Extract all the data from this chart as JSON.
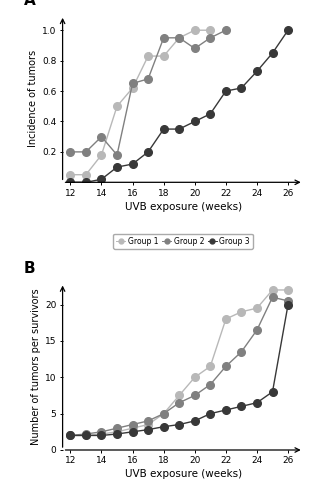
{
  "panel_A": {
    "group1": {
      "x": [
        12,
        13,
        14,
        15,
        16,
        17,
        18,
        19,
        20,
        21
      ],
      "y": [
        0.05,
        0.05,
        0.18,
        0.5,
        0.62,
        0.83,
        0.83,
        0.95,
        1.0,
        1.0
      ],
      "color": "#b8b8b8",
      "label": "Group 1"
    },
    "group2": {
      "x": [
        12,
        13,
        14,
        15,
        16,
        17,
        18,
        19,
        20,
        21,
        22
      ],
      "y": [
        0.2,
        0.2,
        0.3,
        0.18,
        0.65,
        0.68,
        0.95,
        0.95,
        0.88,
        0.95,
        1.0
      ],
      "color": "#808080",
      "label": "Group 2"
    },
    "group3": {
      "x": [
        12,
        13,
        14,
        15,
        16,
        17,
        18,
        19,
        20,
        21,
        22,
        23,
        24,
        25,
        26
      ],
      "y": [
        0.0,
        0.0,
        0.02,
        0.1,
        0.12,
        0.2,
        0.35,
        0.35,
        0.4,
        0.45,
        0.6,
        0.62,
        0.73,
        0.85,
        1.0
      ],
      "color": "#383838",
      "label": "Group 3"
    },
    "ylabel": "Incidence of tumors",
    "xlabel": "UVB exposure (weeks)",
    "ylim": [
      0.0,
      1.1
    ],
    "xlim": [
      11.5,
      27.0
    ],
    "yticks": [
      0.2,
      0.4,
      0.6,
      0.8,
      1.0
    ],
    "xticks": [
      12,
      14,
      16,
      18,
      20,
      22,
      24,
      26
    ],
    "panel_label": "A"
  },
  "panel_B": {
    "group1": {
      "x": [
        12,
        13,
        14,
        15,
        16,
        17,
        18,
        19,
        20,
        21,
        22,
        23,
        24,
        25,
        26
      ],
      "y": [
        2.0,
        2.0,
        2.2,
        2.5,
        3.0,
        3.5,
        5.0,
        7.5,
        10.0,
        11.5,
        18.0,
        19.0,
        19.5,
        22.0,
        22.0
      ],
      "color": "#b8b8b8",
      "label": "Group 1"
    },
    "group2": {
      "x": [
        12,
        13,
        14,
        15,
        16,
        17,
        18,
        19,
        20,
        21,
        22,
        23,
        24,
        25,
        26
      ],
      "y": [
        2.0,
        2.2,
        2.5,
        3.0,
        3.5,
        4.0,
        5.0,
        6.5,
        7.5,
        9.0,
        11.5,
        13.5,
        16.5,
        21.0,
        20.5
      ],
      "color": "#808080",
      "label": "Group 2"
    },
    "group3": {
      "x": [
        12,
        13,
        14,
        15,
        16,
        17,
        18,
        19,
        20,
        21,
        22,
        23,
        24,
        25,
        26
      ],
      "y": [
        2.0,
        2.0,
        2.0,
        2.2,
        2.5,
        2.8,
        3.2,
        3.5,
        4.0,
        5.0,
        5.5,
        6.0,
        6.5,
        8.0,
        20.0
      ],
      "color": "#383838",
      "label": "Group 3"
    },
    "ylabel": "Number of tumors per survivors",
    "xlabel": "UVB exposure (weeks)",
    "ylim": [
      0,
      23
    ],
    "xlim": [
      11.5,
      27.0
    ],
    "yticks": [
      0,
      5,
      10,
      15,
      20
    ],
    "xticks": [
      12,
      14,
      16,
      18,
      20,
      22,
      24,
      26
    ],
    "panel_label": "B"
  },
  "marker_size": 5.5,
  "line_width": 1.0,
  "background_color": "#ffffff"
}
